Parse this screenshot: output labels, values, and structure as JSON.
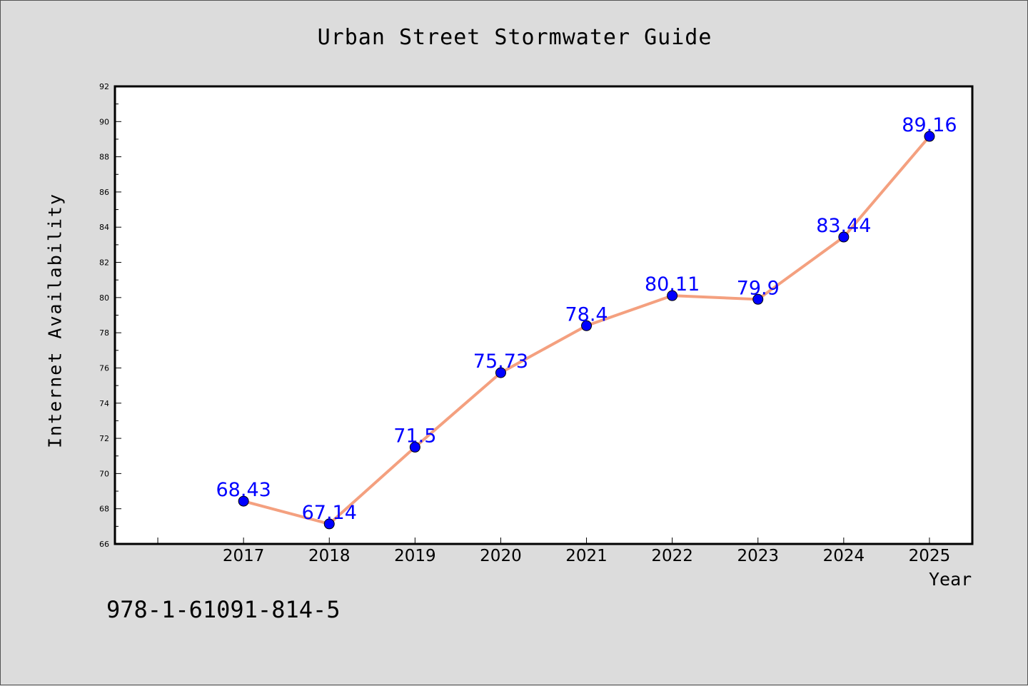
{
  "title": "Urban Street Stormwater Guide",
  "isbn": "978-1-61091-814-5",
  "colors": {
    "background": "#dcdcdc",
    "plot_background": "#ffffff",
    "line": "#f4a07f",
    "marker": "#0000ff",
    "data_label": "#0000ff"
  },
  "chart_data": {
    "type": "line",
    "title": "Urban Street Stormwater Guide",
    "xlabel": "Year",
    "ylabel": "Internet Availability",
    "x": [
      2017,
      2018,
      2019,
      2020,
      2021,
      2022,
      2023,
      2024,
      2025
    ],
    "x_tick_labels": [
      "2017",
      "2018",
      "2019",
      "2020",
      "2021",
      "2022",
      "2023",
      "2024",
      "2025"
    ],
    "series": [
      {
        "values": [
          68.43,
          67.14,
          71.5,
          75.73,
          78.4,
          80.11,
          79.9,
          83.44,
          89.16
        ],
        "labels": [
          "68.43",
          "67.14",
          "71.5",
          "75.73",
          "78.4",
          "80.11",
          "79.9",
          "83.44",
          "89.16"
        ]
      }
    ],
    "xlim": [
      2015.5,
      2025.5
    ],
    "ylim": [
      66,
      92
    ],
    "y_ticks": [
      66,
      68,
      70,
      72,
      74,
      76,
      78,
      80,
      82,
      84,
      86,
      88,
      90,
      92
    ],
    "grid": false,
    "legend": "none"
  }
}
